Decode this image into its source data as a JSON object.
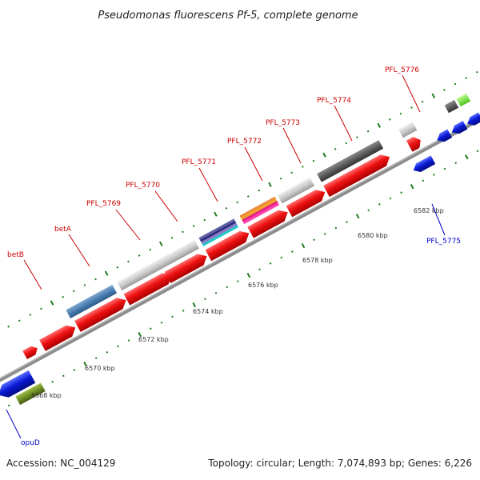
{
  "title": "Pseudomonas fluorescens Pf-5, complete genome",
  "kbp_labels": [
    "6568 kbp",
    "6570 kbp",
    "6572 kbp",
    "6574 kbp",
    "6576 kbp",
    "6578 kbp",
    "6580 kbp",
    "6582 kbp"
  ],
  "gene_labels": {
    "betB": "betB",
    "betA": "betA",
    "pfl5769": "PFL_5769",
    "pfl5770": "PFL_5770",
    "pfl5771": "PFL_5771",
    "pfl5772": "PFL_5772",
    "pfl5773": "PFL_5773",
    "pfl5774": "PFL_5774",
    "pfl5776": "PFL_5776",
    "pfl5775": "PFL_5775",
    "opuD": "opuD"
  },
  "colors": {
    "forward_gene": "#ee1111",
    "reverse_gene": "#0a1ad6",
    "forward_label": "#cc0000",
    "reverse_label": "#0000cc",
    "backbone": "#888888",
    "tick": "#1d7a1d"
  },
  "footer": {
    "accession": "Accession: NC_004129",
    "stats": "Topology: circular; Length: 7,074,893 bp; Genes: 6,226"
  }
}
